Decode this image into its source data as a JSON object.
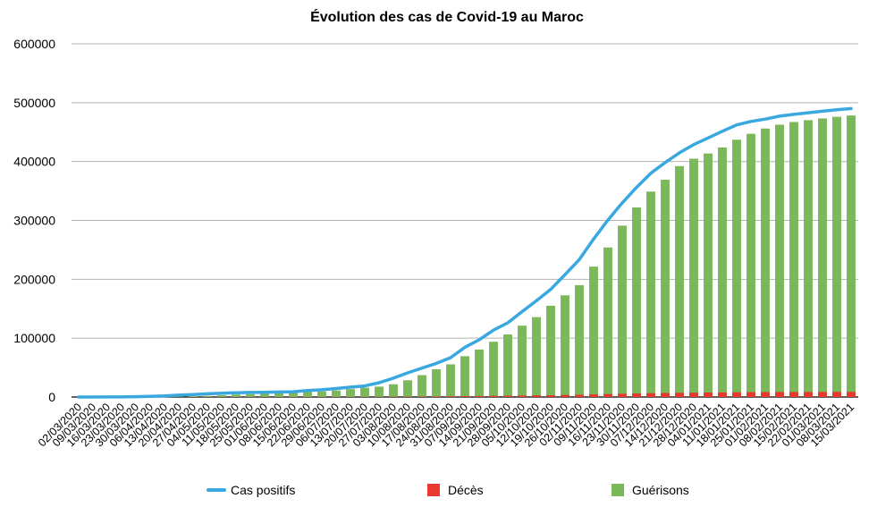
{
  "chart_data": {
    "type": "bar",
    "title": "Évolution des cas de Covid-19 au Maroc",
    "xlabel": "",
    "ylabel": "",
    "ylim": [
      0,
      600000
    ],
    "yticks": [
      "600000",
      "500000",
      "400000",
      "300000",
      "200000",
      "100000",
      "0"
    ],
    "ytick_values": [
      600000,
      500000,
      400000,
      300000,
      200000,
      100000,
      0
    ],
    "grid": true,
    "legend_position": "bottom",
    "x": [
      "02/03/2020",
      "09/03/2020",
      "16/03/2020",
      "23/03/2020",
      "30/03/2020",
      "06/04/2020",
      "13/04/2020",
      "20/04/2020",
      "27/04/2020",
      "04/05/2020",
      "11/05/2020",
      "18/05/2020",
      "25/05/2020",
      "01/06/2020",
      "08/06/2020",
      "15/06/2020",
      "22/06/2020",
      "29/06/2020",
      "06/07/2020",
      "13/07/2020",
      "20/07/2020",
      "27/07/2020",
      "03/08/2020",
      "10/08/2020",
      "17/08/2020",
      "24/08/2020",
      "31/08/2020",
      "07/09/2020",
      "14/09/2020",
      "21/09/2020",
      "28/09/2020",
      "05/10/2020",
      "12/10/2020",
      "19/10/2020",
      "26/10/2020",
      "02/11/2020",
      "09/11/2020",
      "16/11/2020",
      "23/11/2020",
      "30/11/2020",
      "07/12/2020",
      "14/12/2020",
      "21/12/2020",
      "28/12/2020",
      "04/01/2021",
      "11/01/2021",
      "18/01/2021",
      "25/01/2021",
      "01/02/2021",
      "08/02/2021",
      "15/02/2021",
      "22/02/2021",
      "01/03/2021",
      "08/03/2021",
      "15/03/2021"
    ],
    "series": [
      {
        "name": "Cas positifs",
        "type": "line",
        "color": "#3aa8e0",
        "values": [
          1,
          2,
          115,
          225,
          602,
          1141,
          1888,
          3209,
          4252,
          5408,
          6512,
          7133,
          7714,
          7911,
          8537,
          8997,
          10907,
          12290,
          14379,
          16726,
          18834,
          24322,
          32007,
          41017,
          49247,
          57085,
          66855,
          84435,
          97264,
          113606,
          126044,
          145098,
          163508,
          182935,
          207998,
          233542,
          268330,
          300601,
          329784,
          356108,
          380225,
          398208,
          414821,
          428772,
          440007,
          451463,
          462166,
          468085,
          472125,
          477092,
          480175,
          482876,
          485496,
          487937,
          490030
        ]
      },
      {
        "name": "Décès",
        "type": "bar",
        "color": "#e8382f",
        "values": [
          0,
          0,
          3,
          11,
          37,
          71,
          126,
          141,
          163,
          181,
          188,
          192,
          205,
          208,
          212,
          214,
          216,
          229,
          242,
          264,
          302,
          367,
          556,
          729,
          899,
          1011,
          1224,
          1578,
          1753,
          2014,
          2194,
          2432,
          2793,
          3082,
          3445,
          3877,
          4414,
          4972,
          5491,
          6027,
          6492,
          6873,
          7161,
          7355,
          7603,
          7825,
          8097,
          8260,
          8382,
          8496,
          8552,
          8610,
          8665,
          8696,
          8723
        ]
      },
      {
        "name": "Guérisons",
        "type": "bar",
        "color": "#7ab85a",
        "values": [
          0,
          0,
          3,
          7,
          45,
          93,
          217,
          523,
          1064,
          2000,
          3215,
          4190,
          4965,
          5998,
          7493,
          8068,
          8883,
          9530,
          11042,
          13463,
          15814,
          17573,
          21650,
          28436,
          37142,
          47214,
          55521,
          69321,
          80645,
          93961,
          106221,
          121183,
          135711,
          155092,
          172744,
          189950,
          221432,
          254081,
          291064,
          322113,
          348924,
          369128,
          392217,
          404874,
          413715,
          423922,
          437051,
          447091,
          456051,
          462617,
          467173,
          470328,
          473290,
          476044,
          478213
        ]
      }
    ]
  }
}
